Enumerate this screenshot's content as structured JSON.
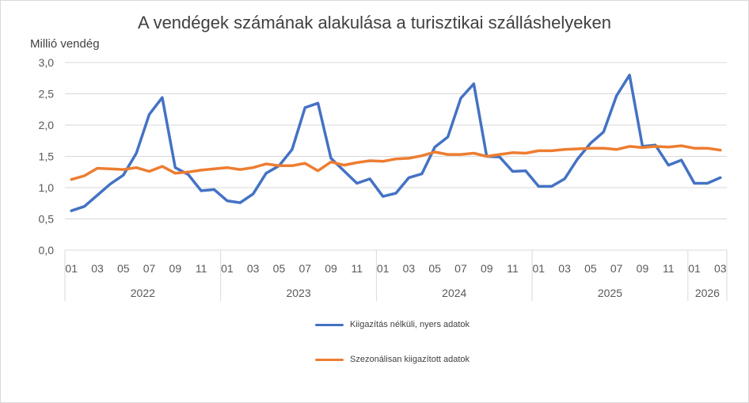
{
  "chart_data": {
    "type": "line",
    "title": "A vendégek számának alakulása a turisztikai szálláshelyeken",
    "ylabel": "Millió vendég",
    "xlabel": "",
    "ylim": [
      0,
      3
    ],
    "yticks": [
      "0,0",
      "0,5",
      "1,0",
      "1,5",
      "2,0",
      "2,5",
      "3,0"
    ],
    "grid": true,
    "legend_position": "bottom",
    "x_month_ticks": [
      "01",
      "03",
      "05",
      "07",
      "09",
      "11",
      "01",
      "03",
      "05",
      "07",
      "09",
      "11",
      "01",
      "03",
      "05",
      "07",
      "09",
      "11",
      "01",
      "03",
      "05",
      "07",
      "09",
      "11",
      "01",
      "03"
    ],
    "years": [
      {
        "label": "2022",
        "months": 12
      },
      {
        "label": "2023",
        "months": 12
      },
      {
        "label": "2024",
        "months": 12
      },
      {
        "label": "2025",
        "months": 12
      },
      {
        "label": "2026",
        "months": 3
      }
    ],
    "x": [
      "2022-01",
      "2022-02",
      "2022-03",
      "2022-04",
      "2022-05",
      "2022-06",
      "2022-07",
      "2022-08",
      "2022-09",
      "2022-10",
      "2022-11",
      "2022-12",
      "2023-01",
      "2023-02",
      "2023-03",
      "2023-04",
      "2023-05",
      "2023-06",
      "2023-07",
      "2023-08",
      "2023-09",
      "2023-10",
      "2023-11",
      "2023-12",
      "2024-01",
      "2024-02",
      "2024-03",
      "2024-04",
      "2024-05",
      "2024-06",
      "2024-07",
      "2024-08",
      "2024-09",
      "2024-10",
      "2024-11",
      "2024-12",
      "2025-01",
      "2025-02",
      "2025-03",
      "2025-04",
      "2025-05",
      "2025-06",
      "2025-07",
      "2025-08",
      "2025-09",
      "2025-10",
      "2025-11",
      "2025-12",
      "2026-01",
      "2026-02",
      "2026-03"
    ],
    "series": [
      {
        "name": "Kiigazítás nélküli, nyers adatok",
        "color": "#4472c4",
        "values": [
          0.63,
          0.7,
          0.88,
          1.06,
          1.2,
          1.55,
          2.17,
          2.44,
          1.32,
          1.21,
          0.95,
          0.97,
          0.79,
          0.76,
          0.9,
          1.23,
          1.35,
          1.61,
          2.28,
          2.35,
          1.47,
          1.27,
          1.07,
          1.14,
          0.86,
          0.91,
          1.16,
          1.22,
          1.65,
          1.81,
          2.43,
          2.66,
          1.5,
          1.49,
          1.26,
          1.27,
          1.02,
          1.02,
          1.14,
          1.46,
          1.71,
          1.89,
          2.47,
          2.8,
          1.66,
          1.68,
          1.36,
          1.44,
          1.07,
          1.07,
          1.16
        ]
      },
      {
        "name": "Szezonálisan kiigazított adatok",
        "color": "#ed7d31",
        "values": [
          1.13,
          1.19,
          1.31,
          1.3,
          1.29,
          1.32,
          1.26,
          1.34,
          1.23,
          1.25,
          1.28,
          1.3,
          1.32,
          1.29,
          1.32,
          1.38,
          1.35,
          1.35,
          1.39,
          1.27,
          1.41,
          1.36,
          1.4,
          1.43,
          1.42,
          1.46,
          1.47,
          1.51,
          1.57,
          1.53,
          1.53,
          1.55,
          1.5,
          1.53,
          1.56,
          1.55,
          1.59,
          1.59,
          1.61,
          1.62,
          1.63,
          1.63,
          1.61,
          1.66,
          1.64,
          1.66,
          1.65,
          1.67,
          1.63,
          1.63,
          1.6
        ]
      }
    ]
  }
}
